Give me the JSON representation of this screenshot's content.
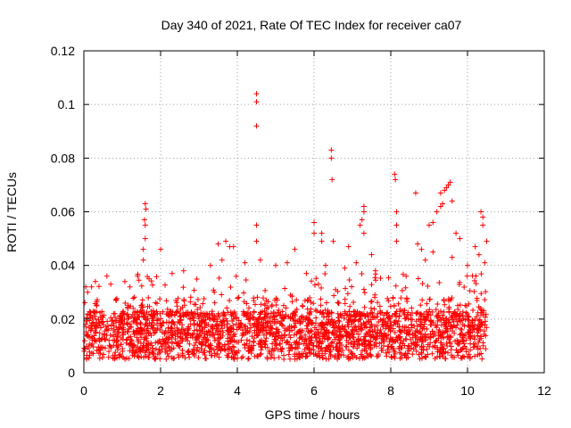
{
  "chart_data": {
    "type": "scatter",
    "title": "Day 340 of 2021, Rate Of TEC Index for receiver ca07",
    "xlabel": "GPS time / hours",
    "ylabel": "ROTI / TECUs",
    "xlim": [
      0,
      12
    ],
    "ylim": [
      0,
      0.12
    ],
    "x_ticks": [
      "0",
      "2",
      "4",
      "6",
      "8",
      "10",
      "12"
    ],
    "y_ticks": [
      "0",
      "0.02",
      "0.04",
      "0.06",
      "0.08",
      "0.1",
      "0.12"
    ],
    "grid": true,
    "marker": "+",
    "color": "#ff0000",
    "series": [
      {
        "name": "ca07",
        "points": [
          [
            4.5,
            0.104
          ],
          [
            4.5,
            0.101
          ],
          [
            4.5,
            0.092
          ],
          [
            4.5,
            0.055
          ],
          [
            4.5,
            0.049
          ],
          [
            6.45,
            0.083
          ],
          [
            6.45,
            0.08
          ],
          [
            6.47,
            0.072
          ],
          [
            6.0,
            0.056
          ],
          [
            6.0,
            0.052
          ],
          [
            6.2,
            0.052
          ],
          [
            6.2,
            0.049
          ],
          [
            6.5,
            0.049
          ],
          [
            8.1,
            0.074
          ],
          [
            8.12,
            0.072
          ],
          [
            8.15,
            0.06
          ],
          [
            8.15,
            0.055
          ],
          [
            8.15,
            0.049
          ],
          [
            8.65,
            0.067
          ],
          [
            9.3,
            0.067
          ],
          [
            9.55,
            0.071
          ],
          [
            9.5,
            0.07
          ],
          [
            9.45,
            0.069
          ],
          [
            9.4,
            0.068
          ],
          [
            9.35,
            0.063
          ],
          [
            9.3,
            0.062
          ],
          [
            9.6,
            0.064
          ],
          [
            9.2,
            0.06
          ],
          [
            9.1,
            0.056
          ],
          [
            9.0,
            0.055
          ],
          [
            10.35,
            0.06
          ],
          [
            10.4,
            0.058
          ],
          [
            10.4,
            0.055
          ],
          [
            7.3,
            0.062
          ],
          [
            7.3,
            0.06
          ],
          [
            7.25,
            0.057
          ],
          [
            7.2,
            0.055
          ],
          [
            7.3,
            0.052
          ],
          [
            1.6,
            0.063
          ],
          [
            1.62,
            0.061
          ],
          [
            1.58,
            0.057
          ],
          [
            1.6,
            0.055
          ],
          [
            1.6,
            0.05
          ],
          [
            1.55,
            0.046
          ],
          [
            1.55,
            0.042
          ],
          [
            2.0,
            0.046
          ],
          [
            3.5,
            0.048
          ],
          [
            3.7,
            0.049
          ],
          [
            3.8,
            0.047
          ],
          [
            3.9,
            0.047
          ],
          [
            5.5,
            0.046
          ],
          [
            6.9,
            0.047
          ],
          [
            7.5,
            0.044
          ],
          [
            8.7,
            0.048
          ],
          [
            8.8,
            0.046
          ],
          [
            9.7,
            0.052
          ],
          [
            9.8,
            0.05
          ],
          [
            10.5,
            0.049
          ],
          [
            10.2,
            0.047
          ],
          [
            0.05,
            0.032
          ],
          [
            0.1,
            0.03
          ],
          [
            0.2,
            0.032
          ],
          [
            0.3,
            0.034
          ],
          [
            0.6,
            0.036
          ],
          [
            0.7,
            0.033
          ],
          [
            1.2,
            0.032
          ],
          [
            1.4,
            0.036
          ],
          [
            1.7,
            0.035
          ],
          [
            2.3,
            0.037
          ],
          [
            2.6,
            0.038
          ],
          [
            3.3,
            0.04
          ],
          [
            3.6,
            0.042
          ],
          [
            4.2,
            0.041
          ],
          [
            4.6,
            0.042
          ],
          [
            5.0,
            0.04
          ],
          [
            5.3,
            0.041
          ],
          [
            5.8,
            0.037
          ],
          [
            6.3,
            0.04
          ],
          [
            6.8,
            0.039
          ],
          [
            7.1,
            0.041
          ],
          [
            7.6,
            0.038
          ],
          [
            8.4,
            0.036
          ],
          [
            8.9,
            0.042
          ],
          [
            9.1,
            0.045
          ],
          [
            9.6,
            0.043
          ],
          [
            10.0,
            0.04
          ],
          [
            10.3,
            0.044
          ],
          [
            10.45,
            0.041
          ]
        ]
      }
    ],
    "band_summary": "dense cloud of points across x from 0 to 10.5 hours, mostly between 0.003 and 0.035 TECU/min"
  }
}
